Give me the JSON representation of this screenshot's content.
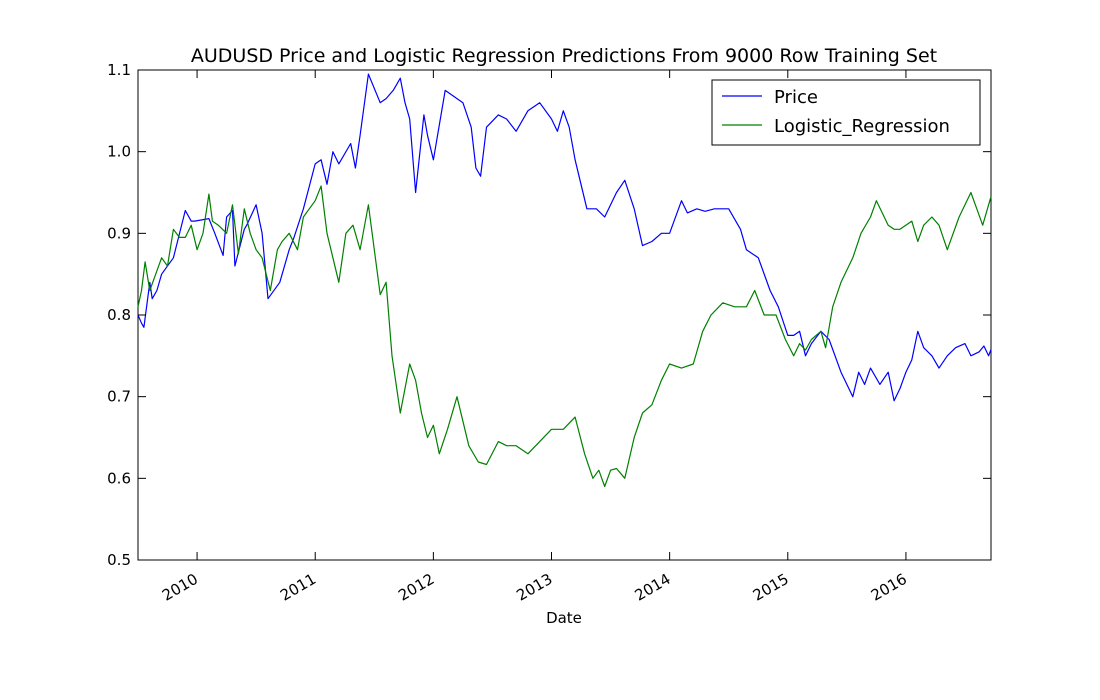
{
  "chart_data": {
    "type": "line",
    "title": "AUDUSD Price and Logistic Regression Predictions From 9000 Row Training Set",
    "xlabel": "Date",
    "ylabel": "",
    "x_ticks": [
      "2010",
      "2011",
      "2012",
      "2013",
      "2014",
      "2015",
      "2016"
    ],
    "y_ticks": [
      "0.5",
      "0.6",
      "0.7",
      "0.8",
      "0.9",
      "1.0",
      "1.1"
    ],
    "xlim": [
      2009.5,
      2016.72
    ],
    "ylim": [
      0.5,
      1.1
    ],
    "grid": false,
    "legend_position": "top-right",
    "series": [
      {
        "name": "Price",
        "color": "#0000ff",
        "x": [
          2009.5,
          2009.53,
          2009.55,
          2009.6,
          2009.62,
          2009.66,
          2009.7,
          2009.8,
          2009.9,
          2009.95,
          2009.98,
          2010.1,
          2010.15,
          2010.22,
          2010.25,
          2010.3,
          2010.32,
          2010.4,
          2010.42,
          2010.5,
          2010.55,
          2010.6,
          2010.7,
          2010.78,
          2010.82,
          2010.9,
          2011.0,
          2011.05,
          2011.1,
          2011.15,
          2011.2,
          2011.3,
          2011.34,
          2011.38,
          2011.45,
          2011.55,
          2011.6,
          2011.66,
          2011.72,
          2011.76,
          2011.8,
          2011.85,
          2011.92,
          2011.95,
          2012.0,
          2012.1,
          2012.15,
          2012.25,
          2012.32,
          2012.36,
          2012.4,
          2012.45,
          2012.55,
          2012.62,
          2012.7,
          2012.8,
          2012.9,
          2013.0,
          2013.05,
          2013.1,
          2013.15,
          2013.2,
          2013.3,
          2013.38,
          2013.45,
          2013.55,
          2013.62,
          2013.7,
          2013.77,
          2013.85,
          2013.93,
          2014.0,
          2014.1,
          2014.15,
          2014.23,
          2014.3,
          2014.38,
          2014.5,
          2014.6,
          2014.65,
          2014.75,
          2014.85,
          2014.92,
          2015.0,
          2015.05,
          2015.1,
          2015.15,
          2015.2,
          2015.28,
          2015.35,
          2015.45,
          2015.55,
          2015.6,
          2015.65,
          2015.7,
          2015.78,
          2015.85,
          2015.9,
          2015.95,
          2016.0,
          2016.05,
          2016.1,
          2016.15,
          2016.22,
          2016.28,
          2016.35,
          2016.42,
          2016.5,
          2016.55,
          2016.62,
          2016.66,
          2016.7,
          2016.72
        ],
        "y": [
          0.8,
          0.79,
          0.785,
          0.84,
          0.82,
          0.83,
          0.85,
          0.87,
          0.928,
          0.915,
          0.915,
          0.918,
          0.9,
          0.873,
          0.92,
          0.928,
          0.86,
          0.905,
          0.91,
          0.935,
          0.9,
          0.82,
          0.84,
          0.88,
          0.895,
          0.93,
          0.985,
          0.99,
          0.96,
          1.0,
          0.985,
          1.01,
          0.98,
          1.02,
          1.095,
          1.06,
          1.065,
          1.075,
          1.09,
          1.06,
          1.04,
          0.95,
          1.045,
          1.02,
          0.99,
          1.075,
          1.07,
          1.06,
          1.03,
          0.98,
          0.97,
          1.03,
          1.045,
          1.04,
          1.025,
          1.05,
          1.06,
          1.04,
          1.025,
          1.05,
          1.03,
          0.99,
          0.93,
          0.93,
          0.92,
          0.95,
          0.965,
          0.93,
          0.885,
          0.89,
          0.9,
          0.9,
          0.94,
          0.925,
          0.93,
          0.927,
          0.93,
          0.93,
          0.905,
          0.88,
          0.87,
          0.83,
          0.81,
          0.775,
          0.775,
          0.78,
          0.75,
          0.765,
          0.78,
          0.77,
          0.73,
          0.7,
          0.73,
          0.715,
          0.735,
          0.715,
          0.73,
          0.695,
          0.71,
          0.73,
          0.745,
          0.78,
          0.76,
          0.75,
          0.735,
          0.75,
          0.76,
          0.765,
          0.75,
          0.755,
          0.762,
          0.75,
          0.758
        ]
      },
      {
        "name": "Logistic_Regression",
        "color": "#008000",
        "x": [
          2009.5,
          2009.53,
          2009.56,
          2009.6,
          2009.65,
          2009.7,
          2009.75,
          2009.8,
          2009.85,
          2009.9,
          2009.95,
          2010.0,
          2010.05,
          2010.1,
          2010.13,
          2010.18,
          2010.25,
          2010.3,
          2010.35,
          2010.4,
          2010.45,
          2010.5,
          2010.55,
          2010.62,
          2010.68,
          2010.72,
          2010.78,
          2010.85,
          2010.9,
          2010.95,
          2011.0,
          2011.05,
          2011.1,
          2011.15,
          2011.2,
          2011.26,
          2011.32,
          2011.38,
          2011.45,
          2011.5,
          2011.55,
          2011.6,
          2011.65,
          2011.72,
          2011.8,
          2011.85,
          2011.9,
          2011.95,
          2012.0,
          2012.05,
          2012.12,
          2012.2,
          2012.3,
          2012.38,
          2012.45,
          2012.55,
          2012.62,
          2012.7,
          2012.8,
          2012.9,
          2013.0,
          2013.1,
          2013.2,
          2013.28,
          2013.35,
          2013.4,
          2013.45,
          2013.5,
          2013.55,
          2013.62,
          2013.7,
          2013.77,
          2013.85,
          2013.93,
          2014.0,
          2014.1,
          2014.2,
          2014.28,
          2014.35,
          2014.45,
          2014.55,
          2014.65,
          2014.72,
          2014.8,
          2014.9,
          2014.98,
          2015.05,
          2015.1,
          2015.15,
          2015.2,
          2015.28,
          2015.32,
          2015.38,
          2015.45,
          2015.55,
          2015.62,
          2015.7,
          2015.75,
          2015.85,
          2015.9,
          2015.95,
          2016.05,
          2016.1,
          2016.15,
          2016.22,
          2016.28,
          2016.35,
          2016.45,
          2016.55,
          2016.6,
          2016.65,
          2016.7,
          2016.72
        ],
        "y": [
          0.81,
          0.83,
          0.865,
          0.83,
          0.85,
          0.87,
          0.86,
          0.905,
          0.895,
          0.895,
          0.91,
          0.88,
          0.9,
          0.948,
          0.915,
          0.91,
          0.9,
          0.935,
          0.875,
          0.93,
          0.9,
          0.88,
          0.87,
          0.83,
          0.88,
          0.89,
          0.9,
          0.88,
          0.92,
          0.93,
          0.94,
          0.958,
          0.9,
          0.87,
          0.84,
          0.9,
          0.91,
          0.88,
          0.935,
          0.88,
          0.825,
          0.84,
          0.75,
          0.68,
          0.74,
          0.72,
          0.68,
          0.65,
          0.665,
          0.63,
          0.66,
          0.7,
          0.64,
          0.62,
          0.617,
          0.645,
          0.64,
          0.64,
          0.63,
          0.645,
          0.66,
          0.66,
          0.675,
          0.63,
          0.6,
          0.61,
          0.59,
          0.61,
          0.612,
          0.6,
          0.65,
          0.68,
          0.69,
          0.72,
          0.74,
          0.735,
          0.74,
          0.78,
          0.8,
          0.815,
          0.81,
          0.81,
          0.83,
          0.8,
          0.8,
          0.77,
          0.75,
          0.765,
          0.757,
          0.77,
          0.78,
          0.76,
          0.81,
          0.84,
          0.87,
          0.9,
          0.92,
          0.94,
          0.91,
          0.905,
          0.905,
          0.915,
          0.89,
          0.91,
          0.92,
          0.91,
          0.88,
          0.92,
          0.95,
          0.93,
          0.91,
          0.935,
          0.945
        ]
      }
    ]
  }
}
